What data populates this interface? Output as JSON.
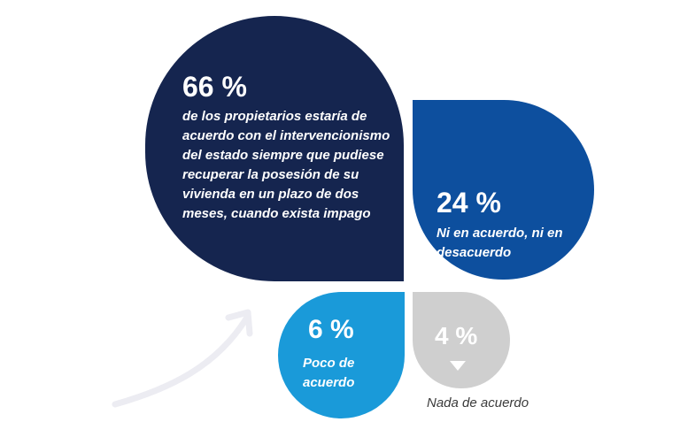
{
  "chart_data": {
    "type": "pie",
    "title": "",
    "values": [
      66,
      24,
      6,
      4
    ],
    "slices": [
      {
        "id": "big",
        "value_label": "66 %",
        "value": 66,
        "label": "de los propietarios estaría de acuerdo con el intervencionismo del estado siempre que pudiese recuperar la posesión de su vivienda en un plazo de dos meses, cuando exista impago",
        "color": "#15254f"
      },
      {
        "id": "mid",
        "value_label": "24 %",
        "value": 24,
        "label": "Ni en acuerdo, ni en desacuerdo",
        "color": "#0d4f9e"
      },
      {
        "id": "small",
        "value_label": "6 %",
        "value": 6,
        "label": "Poco de acuerdo",
        "color": "#1a9ad9"
      },
      {
        "id": "tiny",
        "value_label": "4 %",
        "value": 4,
        "label": "Nada de acuerdo",
        "color": "#cfcfcf"
      }
    ],
    "legend": "none",
    "grid": false
  },
  "colors": {
    "arrow": "#ececf2",
    "label_dark": "#3b3b3b"
  }
}
